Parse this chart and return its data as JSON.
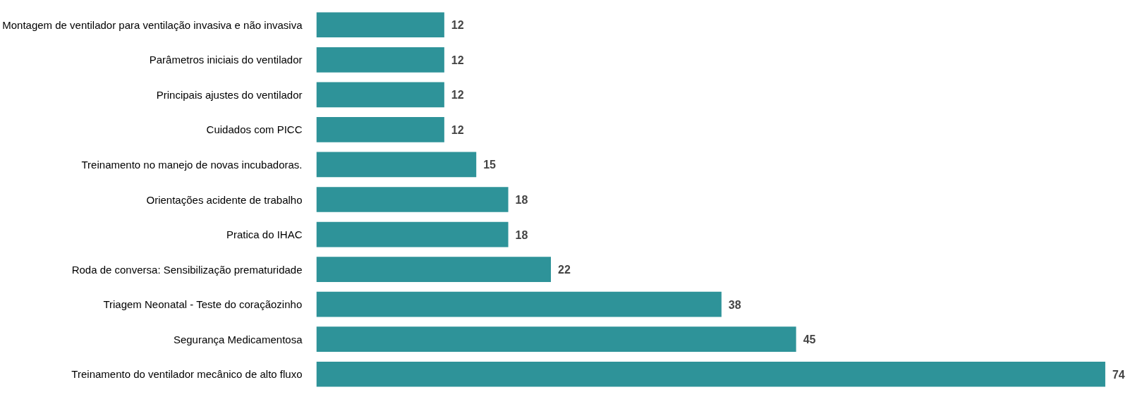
{
  "chart_data": {
    "type": "bar",
    "orientation": "horizontal",
    "categories": [
      "Montagem de ventilador para ventilação invasiva e não invasiva",
      "Parâmetros iniciais do ventilador",
      "Principais ajustes do ventilador",
      "Cuidados com PICC",
      "Treinamento no manejo de novas incubadoras.",
      "Orientações acidente de trabalho",
      "Pratica do IHAC",
      "Roda de conversa: Sensibilização prematuridade",
      "Triagem Neonatal - Teste do coraçãozinho",
      "Segurança Medicamentosa",
      "Treinamento do ventilador mecânico de alto fluxo"
    ],
    "values": [
      12,
      12,
      12,
      12,
      15,
      18,
      18,
      22,
      38,
      45,
      74
    ],
    "color": "#2e9399",
    "data_labels": true
  }
}
